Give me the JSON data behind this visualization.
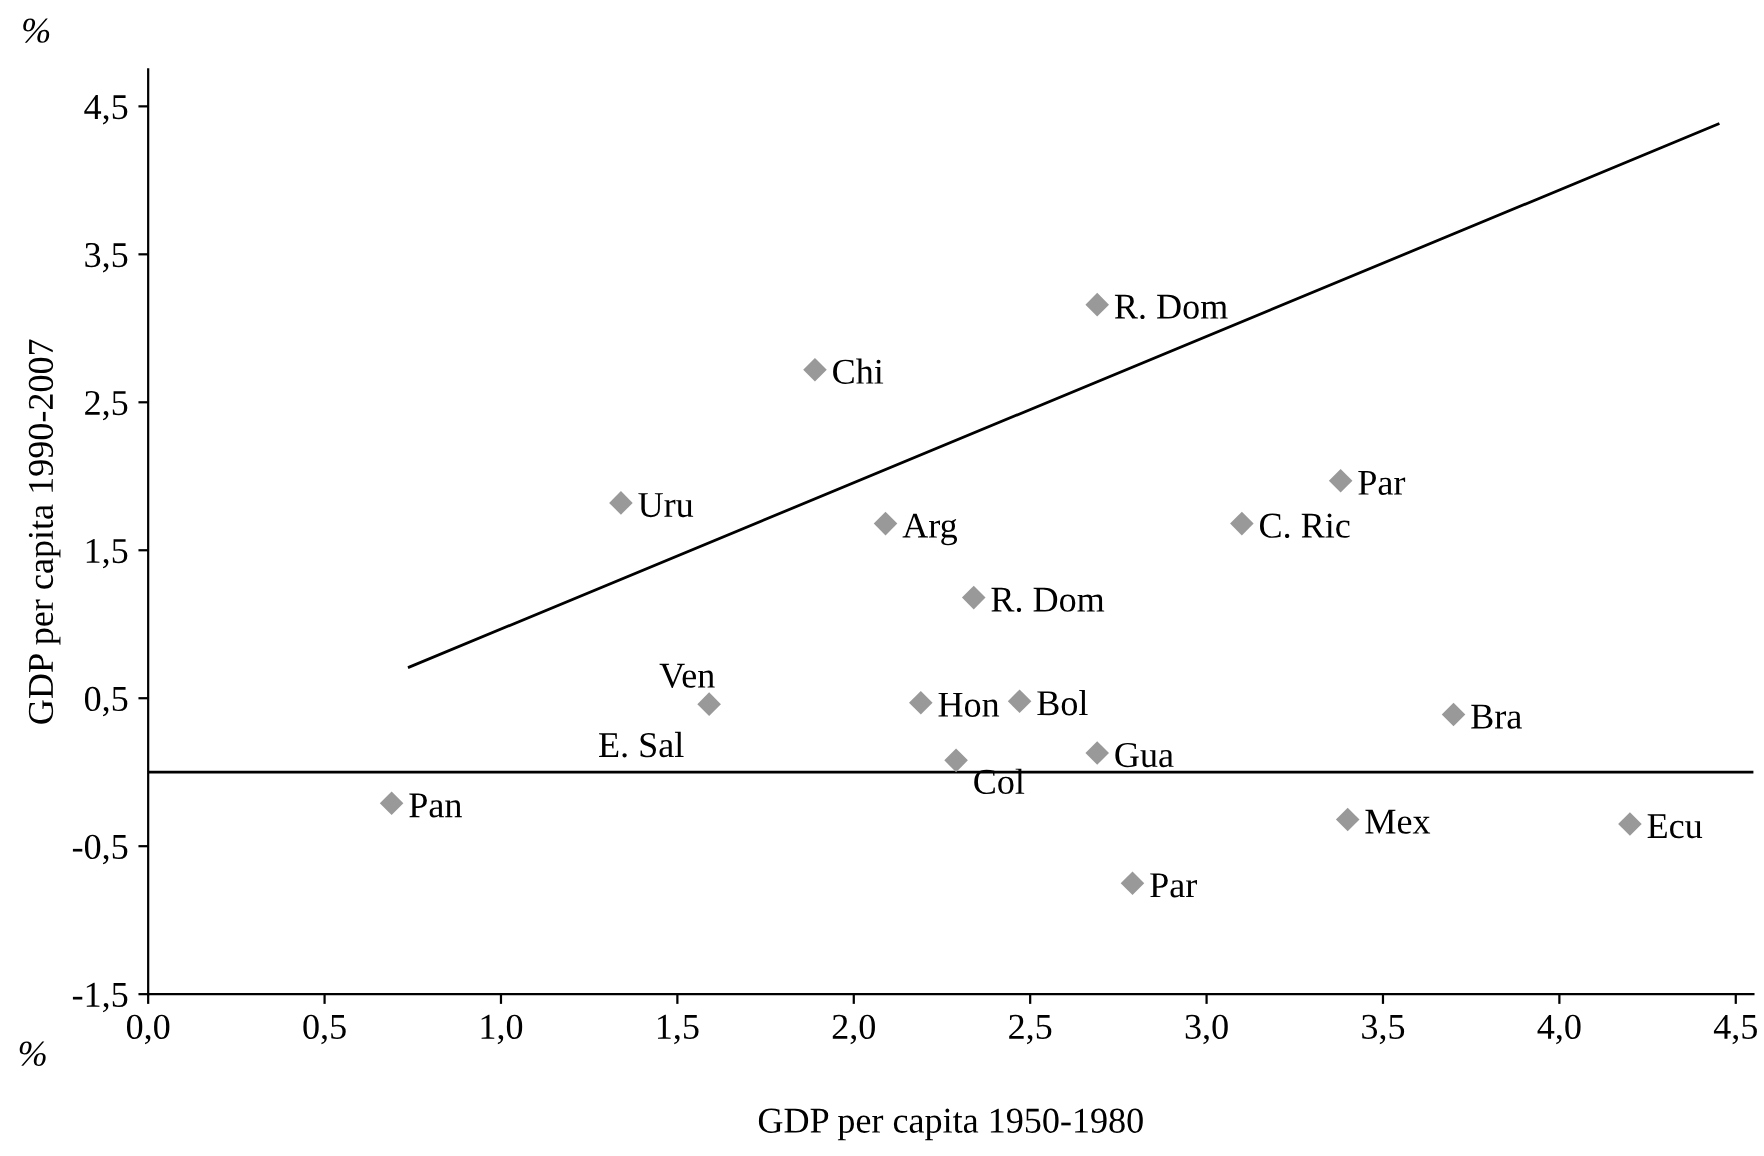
{
  "chart_data": {
    "type": "scatter",
    "xlabel": "GDP per capita 1950-1980",
    "ylabel": "GDP per capita 1990-2007",
    "series": [
      {
        "color": "#999999",
        "marker": "diamond",
        "x": [
          0.69,
          1.34,
          1.59,
          1.89,
          2.09,
          2.19,
          2.29,
          2.34,
          2.47,
          2.69,
          2.69,
          2.79,
          3.1,
          3.38,
          3.4,
          3.7,
          4.2
        ],
        "values": [
          -0.21,
          1.82,
          0.46,
          2.72,
          1.68,
          0.47,
          0.08,
          1.18,
          0.48,
          3.16,
          0.13,
          -0.75,
          1.68,
          1.97,
          -0.32,
          0.39,
          -0.35
        ]
      },
      {
        "type": "line",
        "color": "#000000",
        "x": [
          0.74,
          4.45
        ],
        "values": [
          0.71,
          4.38
        ]
      }
    ],
    "annotations": [
      {
        "text": "Pan",
        "x": 0.69,
        "y": -0.21
      },
      {
        "text": "Uru",
        "x": 1.34,
        "y": 1.82
      },
      {
        "text": "Ven",
        "x": 1.59,
        "y": 0.46
      },
      {
        "text": "E. Sal",
        "x": 1.59,
        "y": 0.46
      },
      {
        "text": "Chi",
        "x": 1.89,
        "y": 2.72
      },
      {
        "text": "Arg",
        "x": 2.09,
        "y": 1.68
      },
      {
        "text": "Hon",
        "x": 2.19,
        "y": 0.47
      },
      {
        "text": "Col",
        "x": 2.29,
        "y": 0.08
      },
      {
        "text": "R. Dom",
        "x": 2.34,
        "y": 1.18
      },
      {
        "text": "Bol",
        "x": 2.47,
        "y": 0.48
      },
      {
        "text": "R. Dom",
        "x": 2.69,
        "y": 3.16
      },
      {
        "text": "Gua",
        "x": 2.69,
        "y": 0.13
      },
      {
        "text": "Par",
        "x": 2.79,
        "y": -0.75
      },
      {
        "text": "C. Ric",
        "x": 3.1,
        "y": 1.68
      },
      {
        "text": "Par",
        "x": 3.38,
        "y": 1.97
      },
      {
        "text": "Mex",
        "x": 3.4,
        "y": -0.32
      },
      {
        "text": "Bra",
        "x": 3.7,
        "y": 0.39
      },
      {
        "text": "Ecu",
        "x": 4.2,
        "y": -0.35
      },
      "%",
      "%"
    ],
    "ref_lines": [
      {
        "axis": "y",
        "value": 0,
        "color": "#000000"
      }
    ],
    "xlim": [
      0,
      4.55
    ],
    "ylim": [
      -1.5,
      4.75
    ],
    "xticks": [
      {
        "value": 0,
        "label": "0,0"
      },
      {
        "value": 0.5,
        "label": "0,5"
      },
      {
        "value": 1,
        "label": "1,0"
      },
      {
        "value": 1.5,
        "label": "1,5"
      },
      {
        "value": 2,
        "label": "2,0"
      },
      {
        "value": 2.5,
        "label": "2,5"
      },
      {
        "value": 3,
        "label": "3,0"
      },
      {
        "value": 3.5,
        "label": "3,5"
      },
      {
        "value": 4,
        "label": "4,0"
      },
      {
        "value": 4.5,
        "label": "4,5"
      }
    ],
    "yticks": [
      {
        "value": -1.5,
        "label": "-1,5"
      },
      {
        "value": -0.5,
        "label": "-0,5"
      },
      {
        "value": 0.5,
        "label": "0,5"
      },
      {
        "value": 1.5,
        "label": "1,5"
      },
      {
        "value": 2.5,
        "label": "2,5"
      },
      {
        "value": 3.5,
        "label": "3,5"
      },
      {
        "value": 4.5,
        "label": "4,5"
      }
    ],
    "grid": false,
    "legend": false
  }
}
